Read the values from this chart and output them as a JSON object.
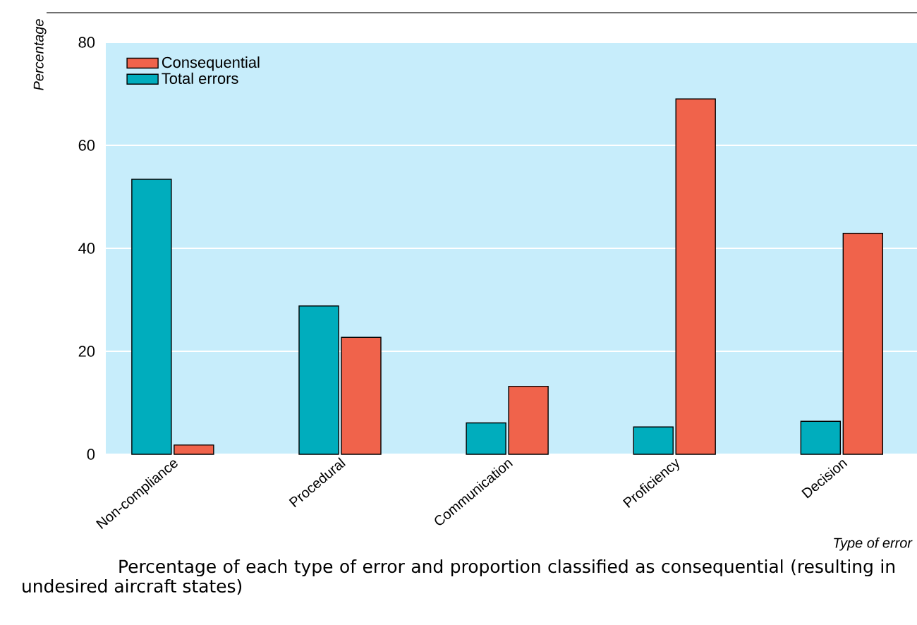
{
  "chart_data": {
    "type": "bar",
    "title": "Percentage of each type of error and proportion classified as consequential (resulting in undesired aircraft states)",
    "xlabel": "Type of error",
    "ylabel": "Percentage",
    "categories": [
      "Non-compliance",
      "Procedural",
      "Communication",
      "Proficiency",
      "Decision"
    ],
    "series": [
      {
        "name": "Total errors",
        "color": "#00adbd",
        "values": [
          53.4,
          28.8,
          6.1,
          5.3,
          6.4
        ]
      },
      {
        "name": "Consequential",
        "color": "#f0634b",
        "values": [
          1.8,
          22.7,
          13.2,
          69.0,
          42.9
        ]
      }
    ],
    "ylim": [
      0,
      80
    ],
    "yticks": [
      0,
      20,
      40,
      60,
      80
    ],
    "grid": "y",
    "legend": "top left"
  }
}
